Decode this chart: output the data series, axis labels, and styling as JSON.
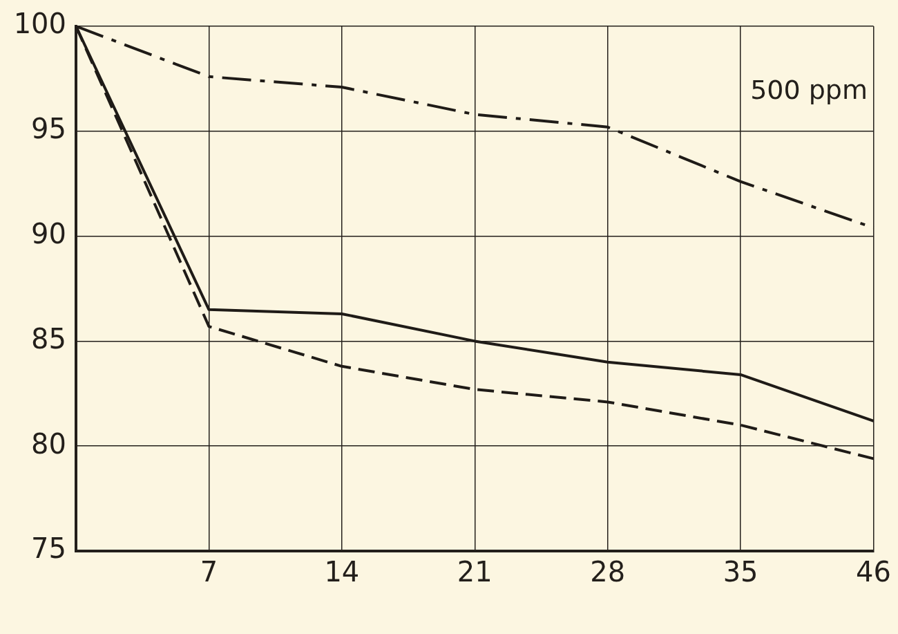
{
  "chart_data": {
    "type": "line",
    "categories": [
      null,
      "7",
      "14",
      "21",
      "28",
      "35",
      "46"
    ],
    "series": [
      {
        "color": "#1f1b17",
        "line_style": "dashdot",
        "values": [
          100,
          97.6,
          97.1,
          95.8,
          95.2,
          92.6,
          90.4
        ]
      },
      {
        "color": "#1f1b17",
        "line_style": "solid",
        "values": [
          100,
          86.5,
          86.3,
          85.0,
          84.0,
          83.4,
          81.2
        ]
      },
      {
        "color": "#1f1b17",
        "line_style": "dashed",
        "values": [
          100,
          85.7,
          83.8,
          82.7,
          82.1,
          81.0,
          79.4
        ]
      }
    ],
    "ylim": [
      75,
      100
    ],
    "yticks": [
      75,
      80,
      85,
      90,
      95,
      100
    ],
    "grid": true,
    "marker": "none",
    "annotations": [
      "500 ppm"
    ]
  }
}
